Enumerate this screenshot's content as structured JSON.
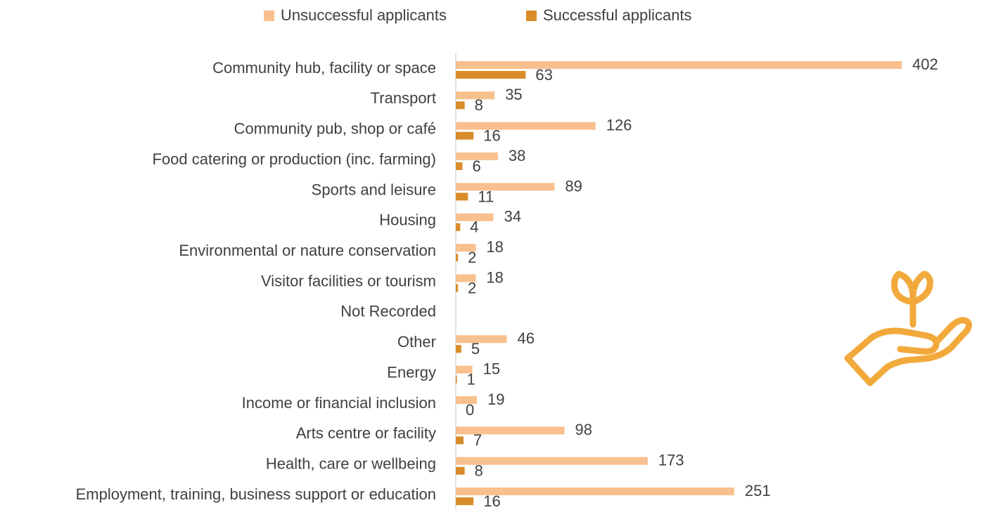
{
  "chart_data": {
    "type": "bar",
    "orientation": "horizontal",
    "categories": [
      "Community hub, facility or space",
      "Transport",
      "Community pub, shop or café",
      "Food catering or production (inc. farming)",
      "Sports and leisure",
      "Housing",
      "Environmental or nature conservation",
      "Visitor facilities or tourism",
      "Not Recorded",
      "Other",
      "Energy",
      "Income or financial inclusion",
      "Arts centre or facility",
      "Health, care or wellbeing",
      "Employment, training, business support or education"
    ],
    "series": [
      {
        "name": "Unsuccessful applicants",
        "color": "#f8c08e",
        "values": [
          402,
          35,
          126,
          38,
          89,
          34,
          18,
          18,
          null,
          46,
          15,
          19,
          98,
          173,
          251
        ]
      },
      {
        "name": "Successful applicants",
        "color": "#d98c2a",
        "values": [
          63,
          8,
          16,
          6,
          11,
          4,
          2,
          2,
          null,
          5,
          1,
          0,
          7,
          8,
          16
        ]
      }
    ],
    "legend": "top"
  }
}
